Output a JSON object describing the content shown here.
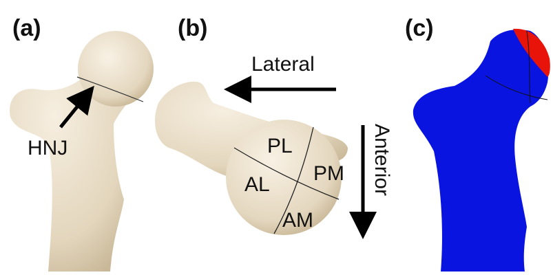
{
  "panels": [
    {
      "label": "(a)",
      "annotation": "HNJ"
    },
    {
      "label": "(b)",
      "arrows": [
        "Lateral",
        "Anterior"
      ],
      "regions": [
        "PL",
        "PM",
        "AL",
        "AM"
      ]
    },
    {
      "label": "(c)"
    }
  ]
}
